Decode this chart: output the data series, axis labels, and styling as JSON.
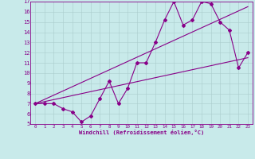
{
  "xlabel": "Windchill (Refroidissement éolien,°C)",
  "bg_color": "#c8eaea",
  "line_color": "#880088",
  "grid_color": "#aacccc",
  "xlim": [
    -0.5,
    23.5
  ],
  "ylim": [
    5,
    17
  ],
  "xticks": [
    0,
    1,
    2,
    3,
    4,
    5,
    6,
    7,
    8,
    9,
    10,
    11,
    12,
    13,
    14,
    15,
    16,
    17,
    18,
    19,
    20,
    21,
    22,
    23
  ],
  "yticks": [
    5,
    6,
    7,
    8,
    9,
    10,
    11,
    12,
    13,
    14,
    15,
    16,
    17
  ],
  "zigzag_x": [
    0,
    1,
    2,
    3,
    4,
    5,
    6,
    7,
    8,
    9,
    10,
    11,
    12,
    13,
    14,
    15,
    16,
    17,
    18,
    19,
    20,
    21,
    22,
    23
  ],
  "zigzag_y": [
    7.0,
    7.0,
    7.0,
    6.5,
    6.2,
    5.2,
    5.8,
    7.5,
    9.2,
    7.0,
    8.5,
    11.0,
    11.0,
    13.0,
    15.2,
    17.0,
    14.7,
    15.2,
    17.0,
    16.8,
    15.0,
    14.2,
    10.5,
    12.0
  ],
  "line1_x": [
    0,
    23
  ],
  "line1_y": [
    7.0,
    11.5
  ],
  "line2_x": [
    0,
    23
  ],
  "line2_y": [
    7.0,
    16.5
  ],
  "xlabel_fontsize": 5.0,
  "xtick_fontsize": 4.2,
  "ytick_fontsize": 5.0,
  "linewidth": 0.8,
  "markersize": 2.0
}
